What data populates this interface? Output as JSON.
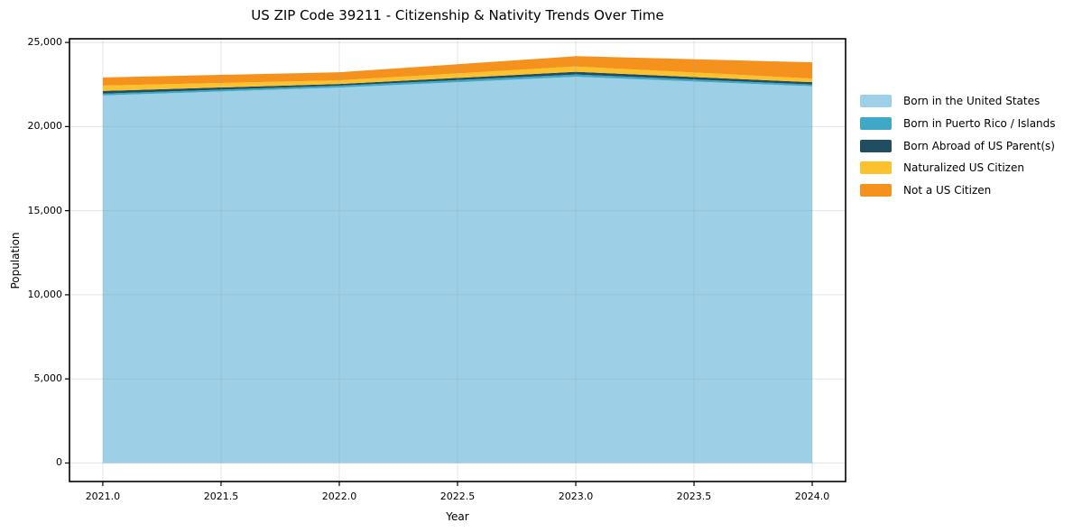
{
  "chart_data": {
    "type": "area",
    "stacked": true,
    "title": "US ZIP Code 39211 - Citizenship & Nativity Trends Over Time",
    "xlabel": "Year",
    "ylabel": "Population",
    "x": [
      2021,
      2022,
      2023,
      2024
    ],
    "series": [
      {
        "name": "Born in the United States",
        "color": "#9dcfe6",
        "values": [
          21850,
          22320,
          22960,
          22400
        ]
      },
      {
        "name": "Born in Puerto Rico / Islands",
        "color": "#3fa8c6",
        "values": [
          110,
          110,
          135,
          105
        ]
      },
      {
        "name": "Born Abroad of US Parent(s)",
        "color": "#1e4e5f",
        "values": [
          160,
          105,
          160,
          135
        ]
      },
      {
        "name": "Naturalized US Citizen",
        "color": "#fcc22d",
        "values": [
          320,
          215,
          320,
          215
        ]
      },
      {
        "name": "Not a US Citizen",
        "color": "#f5921e",
        "values": [
          480,
          480,
          610,
          965
        ]
      }
    ],
    "x_ticks": [
      2021.0,
      2021.5,
      2022.0,
      2022.5,
      2023.0,
      2023.5,
      2024.0
    ],
    "x_tick_labels": [
      "2021.0",
      "2021.5",
      "2022.0",
      "2022.5",
      "2023.0",
      "2023.5",
      "2024.0"
    ],
    "y_ticks": [
      0,
      5000,
      10000,
      15000,
      20000,
      25000
    ],
    "y_tick_labels": [
      "0",
      "5,000",
      "10,000",
      "15,000",
      "20,000",
      "25,000"
    ],
    "xlim": [
      2020.859,
      2024.141
    ],
    "ylim": [
      -1100,
      25220
    ],
    "grid": true,
    "legend_position": "right-outside",
    "spine_color": "#000000",
    "grid_color": "rgba(150,158,165,0.28)"
  }
}
